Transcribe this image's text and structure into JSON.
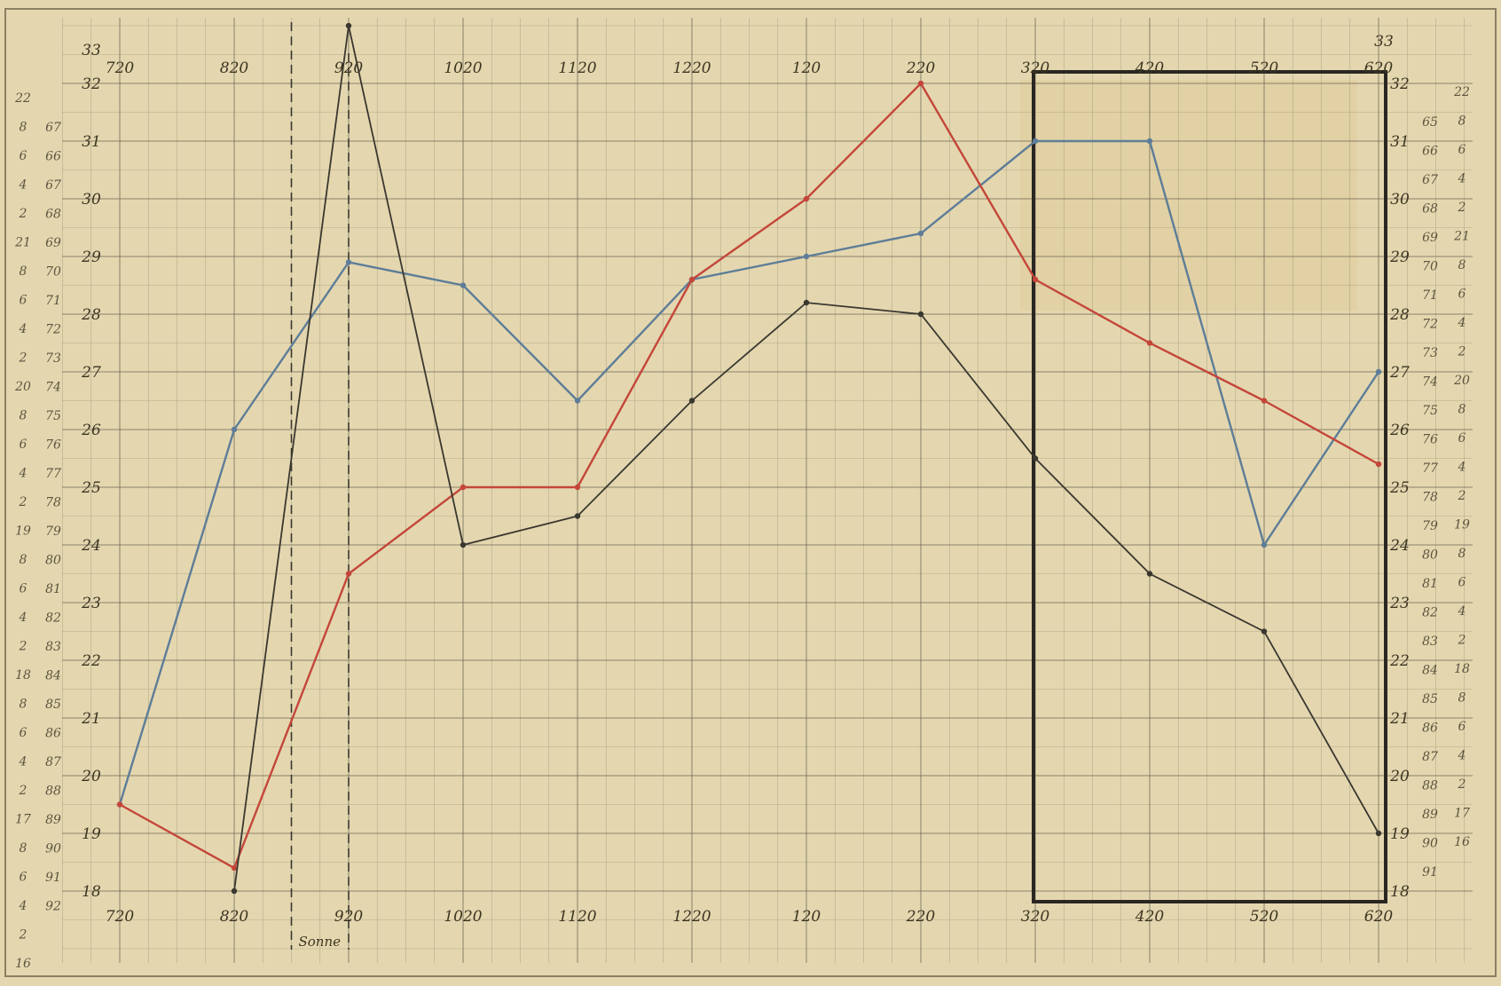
{
  "chart_data": {
    "type": "line",
    "title": "",
    "xlabel": "",
    "ylabel": "",
    "categories": [
      "720",
      "820",
      "920",
      "1020",
      "1120",
      "1220",
      "120",
      "220",
      "320",
      "420",
      "520",
      "620"
    ],
    "top_ticks": [
      "720",
      "820",
      "920",
      "1020",
      "1120",
      "1220",
      "120",
      "220",
      "320",
      "420",
      "520",
      "620"
    ],
    "bottom_ticks": [
      "720",
      "820",
      "920",
      "1020",
      "1120",
      "1220",
      "120",
      "220",
      "320",
      "420",
      "520",
      "620"
    ],
    "ylim": [
      18,
      33
    ],
    "y_ticks": [
      18,
      19,
      20,
      21,
      22,
      23,
      24,
      25,
      26,
      27,
      28,
      29,
      30,
      31,
      32
    ],
    "y_top_label": "33",
    "series": [
      {
        "color": "#5e7d98",
        "values": [
          19.5,
          26.0,
          28.9,
          28.5,
          26.5,
          28.6,
          29.0,
          29.4,
          31.0,
          31.0,
          24.0,
          27.0
        ]
      },
      {
        "color": "#c4463a",
        "values": [
          19.5,
          18.4,
          23.5,
          25.0,
          25.0,
          28.6,
          30.0,
          32.0,
          28.6,
          27.5,
          26.5,
          25.4
        ]
      },
      {
        "color": "#3a3730",
        "values": [
          null,
          18.0,
          33.0,
          24.0,
          24.5,
          26.5,
          28.2,
          28.0,
          25.5,
          23.5,
          22.5,
          19.0
        ]
      }
    ],
    "annotations": {
      "sonne_marker_category": "820",
      "sonne_label": "Sonne",
      "highlight_box_categories": [
        "320",
        "620"
      ]
    },
    "left_scale_a": [
      "22",
      "8",
      "6",
      "4",
      "2",
      "21",
      "8",
      "6",
      "4",
      "2",
      "20",
      "8",
      "6",
      "4",
      "2",
      "19",
      "8",
      "6",
      "4",
      "2",
      "18",
      "8",
      "6",
      "4",
      "2",
      "17",
      "8",
      "6",
      "4",
      "2",
      "16"
    ],
    "left_scale_b": [
      "67",
      "66",
      "67",
      "68",
      "69",
      "70",
      "71",
      "72",
      "73",
      "74",
      "75",
      "76",
      "77",
      "78",
      "79",
      "80",
      "81",
      "82",
      "83",
      "84",
      "85",
      "86",
      "87",
      "88",
      "89",
      "90",
      "91",
      "92"
    ],
    "right_scale_a": [
      "65",
      "66",
      "67",
      "68",
      "69",
      "70",
      "71",
      "72",
      "73",
      "74",
      "75",
      "76",
      "77",
      "78",
      "79",
      "80",
      "81",
      "82",
      "83",
      "84",
      "85",
      "86",
      "87",
      "88",
      "89",
      "90",
      "91"
    ],
    "right_scale_b": [
      "22",
      "8",
      "6",
      "4",
      "2",
      "21",
      "8",
      "6",
      "4",
      "2",
      "20",
      "8",
      "6",
      "4",
      "2",
      "19",
      "8",
      "6",
      "4",
      "2",
      "18",
      "8",
      "6",
      "4",
      "2",
      "17",
      "16"
    ],
    "grid": true,
    "legend": "none"
  }
}
